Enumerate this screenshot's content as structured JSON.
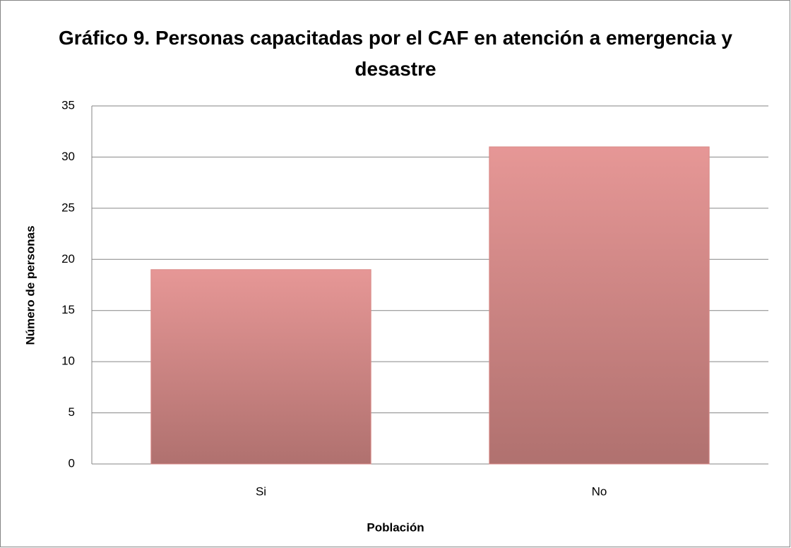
{
  "chart_data": {
    "type": "bar",
    "title": "Gráfico 9. Personas capacitadas por el CAF en atención a emergencia y desastre",
    "xlabel": "Población",
    "ylabel": "Número de personas",
    "categories": [
      "Si",
      "No"
    ],
    "values": [
      19,
      31
    ],
    "color": "#d98a88",
    "ylim": [
      0,
      35
    ],
    "yticks": [
      0,
      5,
      10,
      15,
      20,
      25,
      30,
      35
    ],
    "grid": true
  }
}
